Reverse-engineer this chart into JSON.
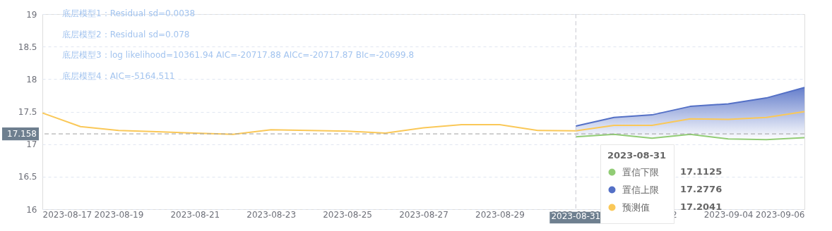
{
  "chart_data": {
    "type": "line",
    "x": [
      "2023-08-17",
      "2023-08-18",
      "2023-08-19",
      "2023-08-20",
      "2023-08-21",
      "2023-08-22",
      "2023-08-23",
      "2023-08-24",
      "2023-08-25",
      "2023-08-26",
      "2023-08-27",
      "2023-08-28",
      "2023-08-29",
      "2023-08-30",
      "2023-08-31",
      "2023-09-01",
      "2023-09-02",
      "2023-09-03",
      "2023-09-04",
      "2023-09-05",
      "2023-09-06"
    ],
    "series": [
      {
        "name": "置信下限",
        "color": "#91cc75",
        "values": [
          null,
          null,
          null,
          null,
          null,
          null,
          null,
          null,
          null,
          null,
          null,
          null,
          null,
          null,
          17.1125,
          17.15,
          17.09,
          17.15,
          17.08,
          17.07,
          17.1
        ]
      },
      {
        "name": "置信上限",
        "color": "#5470c6",
        "values": [
          null,
          null,
          null,
          null,
          null,
          null,
          null,
          null,
          null,
          null,
          null,
          null,
          null,
          null,
          17.2776,
          17.41,
          17.45,
          17.58,
          17.62,
          17.71,
          17.87
        ],
        "lower": [
          null,
          null,
          null,
          null,
          null,
          null,
          null,
          null,
          null,
          null,
          null,
          null,
          null,
          null,
          17.1125,
          17.15,
          17.09,
          17.15,
          17.08,
          17.07,
          17.1
        ],
        "upper": [
          null,
          null,
          null,
          null,
          null,
          null,
          null,
          null,
          null,
          null,
          null,
          null,
          null,
          null,
          17.2776,
          17.41,
          17.45,
          17.58,
          17.62,
          17.71,
          17.87
        ]
      },
      {
        "name": "预测值",
        "color": "#fac858",
        "values": [
          17.48,
          17.27,
          17.21,
          17.19,
          17.17,
          17.15,
          17.22,
          17.21,
          17.2,
          17.17,
          17.25,
          17.3,
          17.3,
          17.21,
          17.2041,
          17.29,
          17.29,
          17.39,
          17.38,
          17.41,
          17.5
        ]
      }
    ],
    "xlim": [
      "2023-08-17",
      "2023-09-06"
    ],
    "xticks": [
      "2023-08-17",
      "2023-08-19",
      "2023-08-21",
      "2023-08-23",
      "2023-08-25",
      "2023-08-27",
      "2023-08-29",
      "2023-08-31",
      "2023-09-02",
      "2023-09-04",
      "2023-09-06"
    ],
    "ylim": [
      16,
      19
    ],
    "yticks": [
      16,
      16.5,
      17,
      17.5,
      18,
      18.5,
      19
    ],
    "grid": "y",
    "legend": "bottom right",
    "legend_title": "2023-08-31",
    "marker": "none",
    "line_style": "solid",
    "ref_lines": [
      {
        "axis": "y",
        "value": 17.158,
        "label": "17.158",
        "color": "#9e9e9e",
        "line_style": "dashed"
      },
      {
        "axis": "x",
        "value": "2023-08-31",
        "label": "2023-08-31",
        "color": "#c8c8d0",
        "line_style": "dashed"
      }
    ],
    "annotations": [
      "底层模型1：Residual sd=0.0038",
      "底层模型2：Residual sd=0.078",
      "底层模型3：log likelihood=10361.94 AIC=-20717.88 AICc=-20717.87 BIc=-20699.8",
      "底层模型4：AIC=-5164.511",
      "17.1125",
      "17.2776",
      "17.2041"
    ]
  }
}
